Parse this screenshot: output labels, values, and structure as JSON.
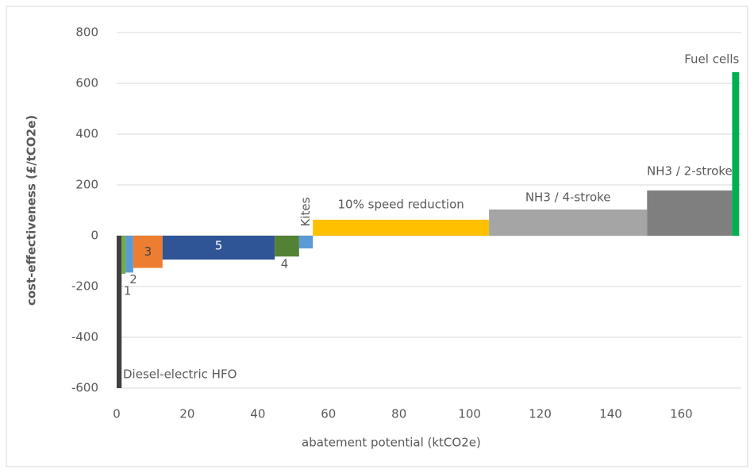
{
  "chart_data": {
    "type": "macc",
    "y_label": "cost-effectiveness (£/tCO2e)",
    "x_label": "abatement potential (ktCO2e)",
    "xlim": [
      0,
      177
    ],
    "xticks": [
      0,
      20,
      40,
      60,
      80,
      100,
      120,
      140,
      160
    ],
    "ylim": [
      -600,
      800
    ],
    "yticks": [
      -600,
      -400,
      -200,
      0,
      200,
      400,
      600,
      800
    ],
    "grid": true,
    "bars": [
      {
        "label": "Diesel-electric HFO",
        "start": 0,
        "end": 1.4,
        "value": -600,
        "color": "#404040"
      },
      {
        "label": "1",
        "start": 1.4,
        "end": 2.5,
        "value": -150,
        "color": "#70ad47"
      },
      {
        "label": "2",
        "start": 2.5,
        "end": 4.7,
        "value": -145,
        "color": "#5b9bd5"
      },
      {
        "label": "3",
        "start": 4.7,
        "end": 13,
        "value": -127,
        "color": "#ed7d31"
      },
      {
        "label": "5",
        "start": 13,
        "end": 44.8,
        "value": -94,
        "color": "#2f5597"
      },
      {
        "label": "4",
        "start": 44.8,
        "end": 51.7,
        "value": -82,
        "color": "#548235"
      },
      {
        "label": "Kites",
        "start": 51.7,
        "end": 55.6,
        "value": -50,
        "color": "#5b9bd5"
      },
      {
        "label": "10% speed reduction",
        "start": 55.6,
        "end": 105.5,
        "value": 63,
        "color": "#ffc000"
      },
      {
        "label": "NH3 / 4-stroke",
        "start": 105.5,
        "end": 150.3,
        "value": 103,
        "color": "#a5a5a5"
      },
      {
        "label": "NH3 / 2-stroke",
        "start": 150.3,
        "end": 174.4,
        "value": 178,
        "color": "#7f7f7f"
      },
      {
        "label": "Fuel cells",
        "start": 174.4,
        "end": 176.4,
        "value": 644,
        "color": "#00b050"
      }
    ]
  }
}
